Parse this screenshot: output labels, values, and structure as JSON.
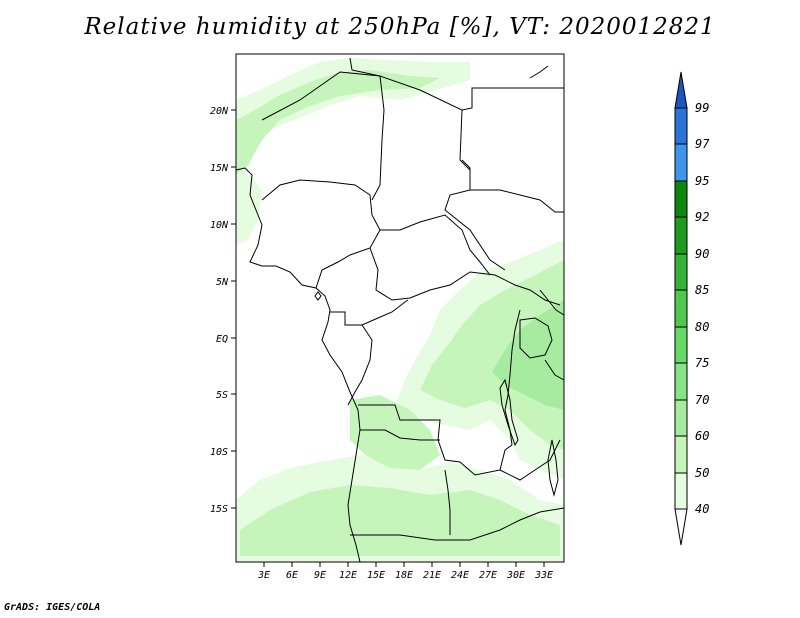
{
  "title": "Relative humidity at 250hPa [%], VT: 2020012821",
  "footer": "GrADS: IGES/COLA",
  "map": {
    "lat_labels": [
      "20N",
      "15N",
      "10N",
      "5N",
      "EQ",
      "5S",
      "10S",
      "15S"
    ],
    "lon_labels": [
      "3E",
      "6E",
      "9E",
      "12E",
      "15E",
      "18E",
      "21E",
      "24E",
      "27E",
      "30E",
      "33E"
    ]
  },
  "colorbar": {
    "levels": [
      "40",
      "50",
      "60",
      "70",
      "75",
      "80",
      "85",
      "90",
      "92",
      "95",
      "97",
      "99"
    ],
    "colors": [
      "#ffffff",
      "#e6fce0",
      "#c6f5bc",
      "#a6eba0",
      "#86e486",
      "#66d966",
      "#4ec94e",
      "#36b436",
      "#1e9a1e",
      "#0e870e",
      "#3f96e8",
      "#2a74d6",
      "#1a56c2"
    ]
  },
  "colors": {
    "land_outline": "#000000",
    "frame": "#000000"
  }
}
